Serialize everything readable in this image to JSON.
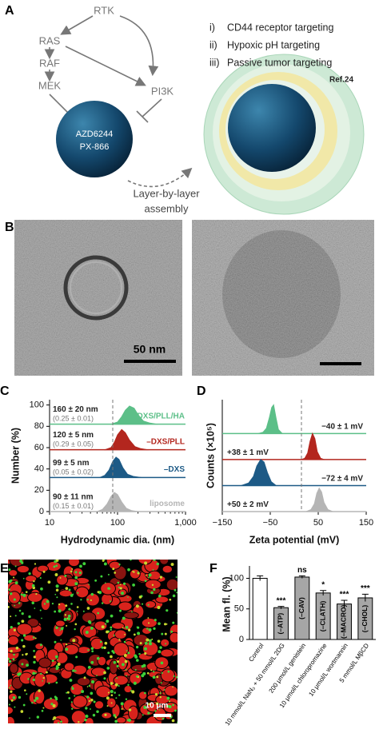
{
  "panel_a": {
    "label": "A",
    "nodes": [
      "RTK",
      "RAS",
      "RAF",
      "MEK",
      "PI3K"
    ],
    "drugs": [
      "AZD6244",
      "PX-866"
    ],
    "targeting": [
      {
        "marker": "i)",
        "text": "CD44 receptor targeting"
      },
      {
        "marker": "ii)",
        "text": "Hypoxic pH targeting"
      },
      {
        "marker": "iii)",
        "text": "Passive tumor targeting"
      }
    ],
    "ref": "Ref.24",
    "assembly": [
      "Layer-by-layer",
      "assembly"
    ]
  },
  "panel_b": {
    "label": "B",
    "scale_label": "50 nm"
  },
  "panel_e": {
    "label": "E",
    "scale_label": "10 μm"
  },
  "chart_data": [
    {
      "panel_label": "C",
      "type": "area",
      "xlabel": "Hydrodynamic dia. (nm)",
      "ylabel": "Number (%)",
      "xscale": "log",
      "xlim": [
        10,
        1000
      ],
      "xticks": [
        10,
        100,
        {
          "value": 1000,
          "label": "1,000"
        }
      ],
      "ylim": [
        0,
        105
      ],
      "yticks": [
        0,
        20,
        40,
        60,
        80,
        100
      ],
      "vline": 85,
      "series": [
        {
          "name": "–DXS/PLL/HA",
          "color": "#5cbf88",
          "offset": 82,
          "size_label": "160 ± 20 nm",
          "pdi_label": "(0.25 ± 0.01)",
          "x": [
            80,
            100,
            115,
            130,
            150,
            175,
            200,
            240,
            300,
            380
          ],
          "values": [
            0,
            2,
            7,
            13,
            17,
            15,
            9,
            3,
            1,
            0
          ]
        },
        {
          "name": "–DXS/PLL",
          "color": "#b3261e",
          "offset": 58,
          "size_label": "120 ± 5 nm",
          "pdi_label": "(0.29 ± 0.05)",
          "x": [
            65,
            80,
            90,
            100,
            115,
            130,
            150,
            180,
            220,
            280
          ],
          "values": [
            0,
            2,
            7,
            14,
            19,
            16,
            9,
            3,
            1,
            0
          ]
        },
        {
          "name": "–DXS",
          "color": "#1d5a86",
          "offset": 32,
          "size_label": "99 ± 5 nm",
          "pdi_label": "(0.05 ± 0.02)",
          "x": [
            55,
            65,
            75,
            85,
            95,
            105,
            120,
            140,
            170,
            220
          ],
          "values": [
            0,
            2,
            7,
            15,
            19,
            17,
            9,
            3,
            1,
            0
          ]
        },
        {
          "name": "liposome",
          "color": "#b5b5b5",
          "offset": 0,
          "size_label": "90 ± 11 nm",
          "pdi_label": "(0.15 ± 0.01)",
          "x": [
            50,
            60,
            70,
            80,
            90,
            100,
            115,
            135,
            160,
            200
          ],
          "values": [
            0,
            2,
            7,
            14,
            18,
            16,
            9,
            3,
            1,
            0
          ]
        }
      ]
    },
    {
      "panel_label": "D",
      "type": "area",
      "xlabel": "Zeta potential (mV)",
      "ylabel": "Counts (×10⁵)",
      "xlim": [
        -150,
        150
      ],
      "xticks": [
        {
          "value": -150,
          "label": "−150"
        },
        {
          "value": -50,
          "label": "−50"
        },
        50,
        150
      ],
      "ylim": [
        0,
        4.3
      ],
      "vline": 15,
      "series": [
        {
          "color": "#5cbf88",
          "offset": 3,
          "label": "−40 ± 1 mV",
          "x": [
            -75,
            -65,
            -58,
            -52,
            -47,
            -43,
            -38,
            -33,
            -25
          ],
          "values": [
            0,
            0.05,
            0.2,
            0.6,
            1,
            1.1,
            0.6,
            0.15,
            0
          ]
        },
        {
          "color": "#b3261e",
          "offset": 2,
          "label": "+38 ± 1 mV",
          "x": [
            15,
            22,
            28,
            33,
            38,
            43,
            48,
            55,
            62
          ],
          "values": [
            0,
            0.05,
            0.25,
            0.7,
            1,
            0.8,
            0.3,
            0.05,
            0
          ]
        },
        {
          "color": "#1d5a86",
          "offset": 1,
          "label": "−72 ± 4 mV",
          "x": [
            -110,
            -95,
            -85,
            -78,
            -70,
            -63,
            -56,
            -48,
            -38
          ],
          "values": [
            0,
            0.1,
            0.35,
            0.75,
            1,
            0.9,
            0.5,
            0.15,
            0
          ]
        },
        {
          "color": "#b5b5b5",
          "offset": 0,
          "label": "+50 ± 2 mV",
          "x": [
            25,
            35,
            42,
            47,
            52,
            57,
            62,
            70,
            80
          ],
          "values": [
            0,
            0.08,
            0.3,
            0.7,
            0.9,
            0.75,
            0.35,
            0.08,
            0
          ]
        }
      ]
    },
    {
      "panel_label": "F",
      "type": "bar",
      "ylabel": "Mean fl. (%)",
      "categories": [
        "Control",
        "10 mmol/L NaN₃ + 50 mmol/L 2DG",
        "200 μmol/L genistein",
        "10 μmol/L chloropromazine",
        "10 μmol/L wortmannin",
        "5 mmol/L MβCD"
      ],
      "values": [
        100,
        52,
        102,
        76,
        58,
        68
      ],
      "errors": [
        4,
        2,
        2,
        4,
        6,
        6
      ],
      "colors": [
        "#ffffff",
        "#a6a6a6",
        "#a6a6a6",
        "#a6a6a6",
        "#a6a6a6",
        "#a6a6a6"
      ],
      "bar_labels": [
        null,
        "(–ATP)",
        "(–CAV)",
        "(–CLATH)",
        "(–MACRO)",
        "(–CHOL)"
      ],
      "significance": [
        null,
        "***",
        "ns",
        "*",
        "***",
        "***"
      ],
      "ylim": [
        0,
        115
      ],
      "yticks": [
        0,
        50,
        100
      ]
    }
  ]
}
